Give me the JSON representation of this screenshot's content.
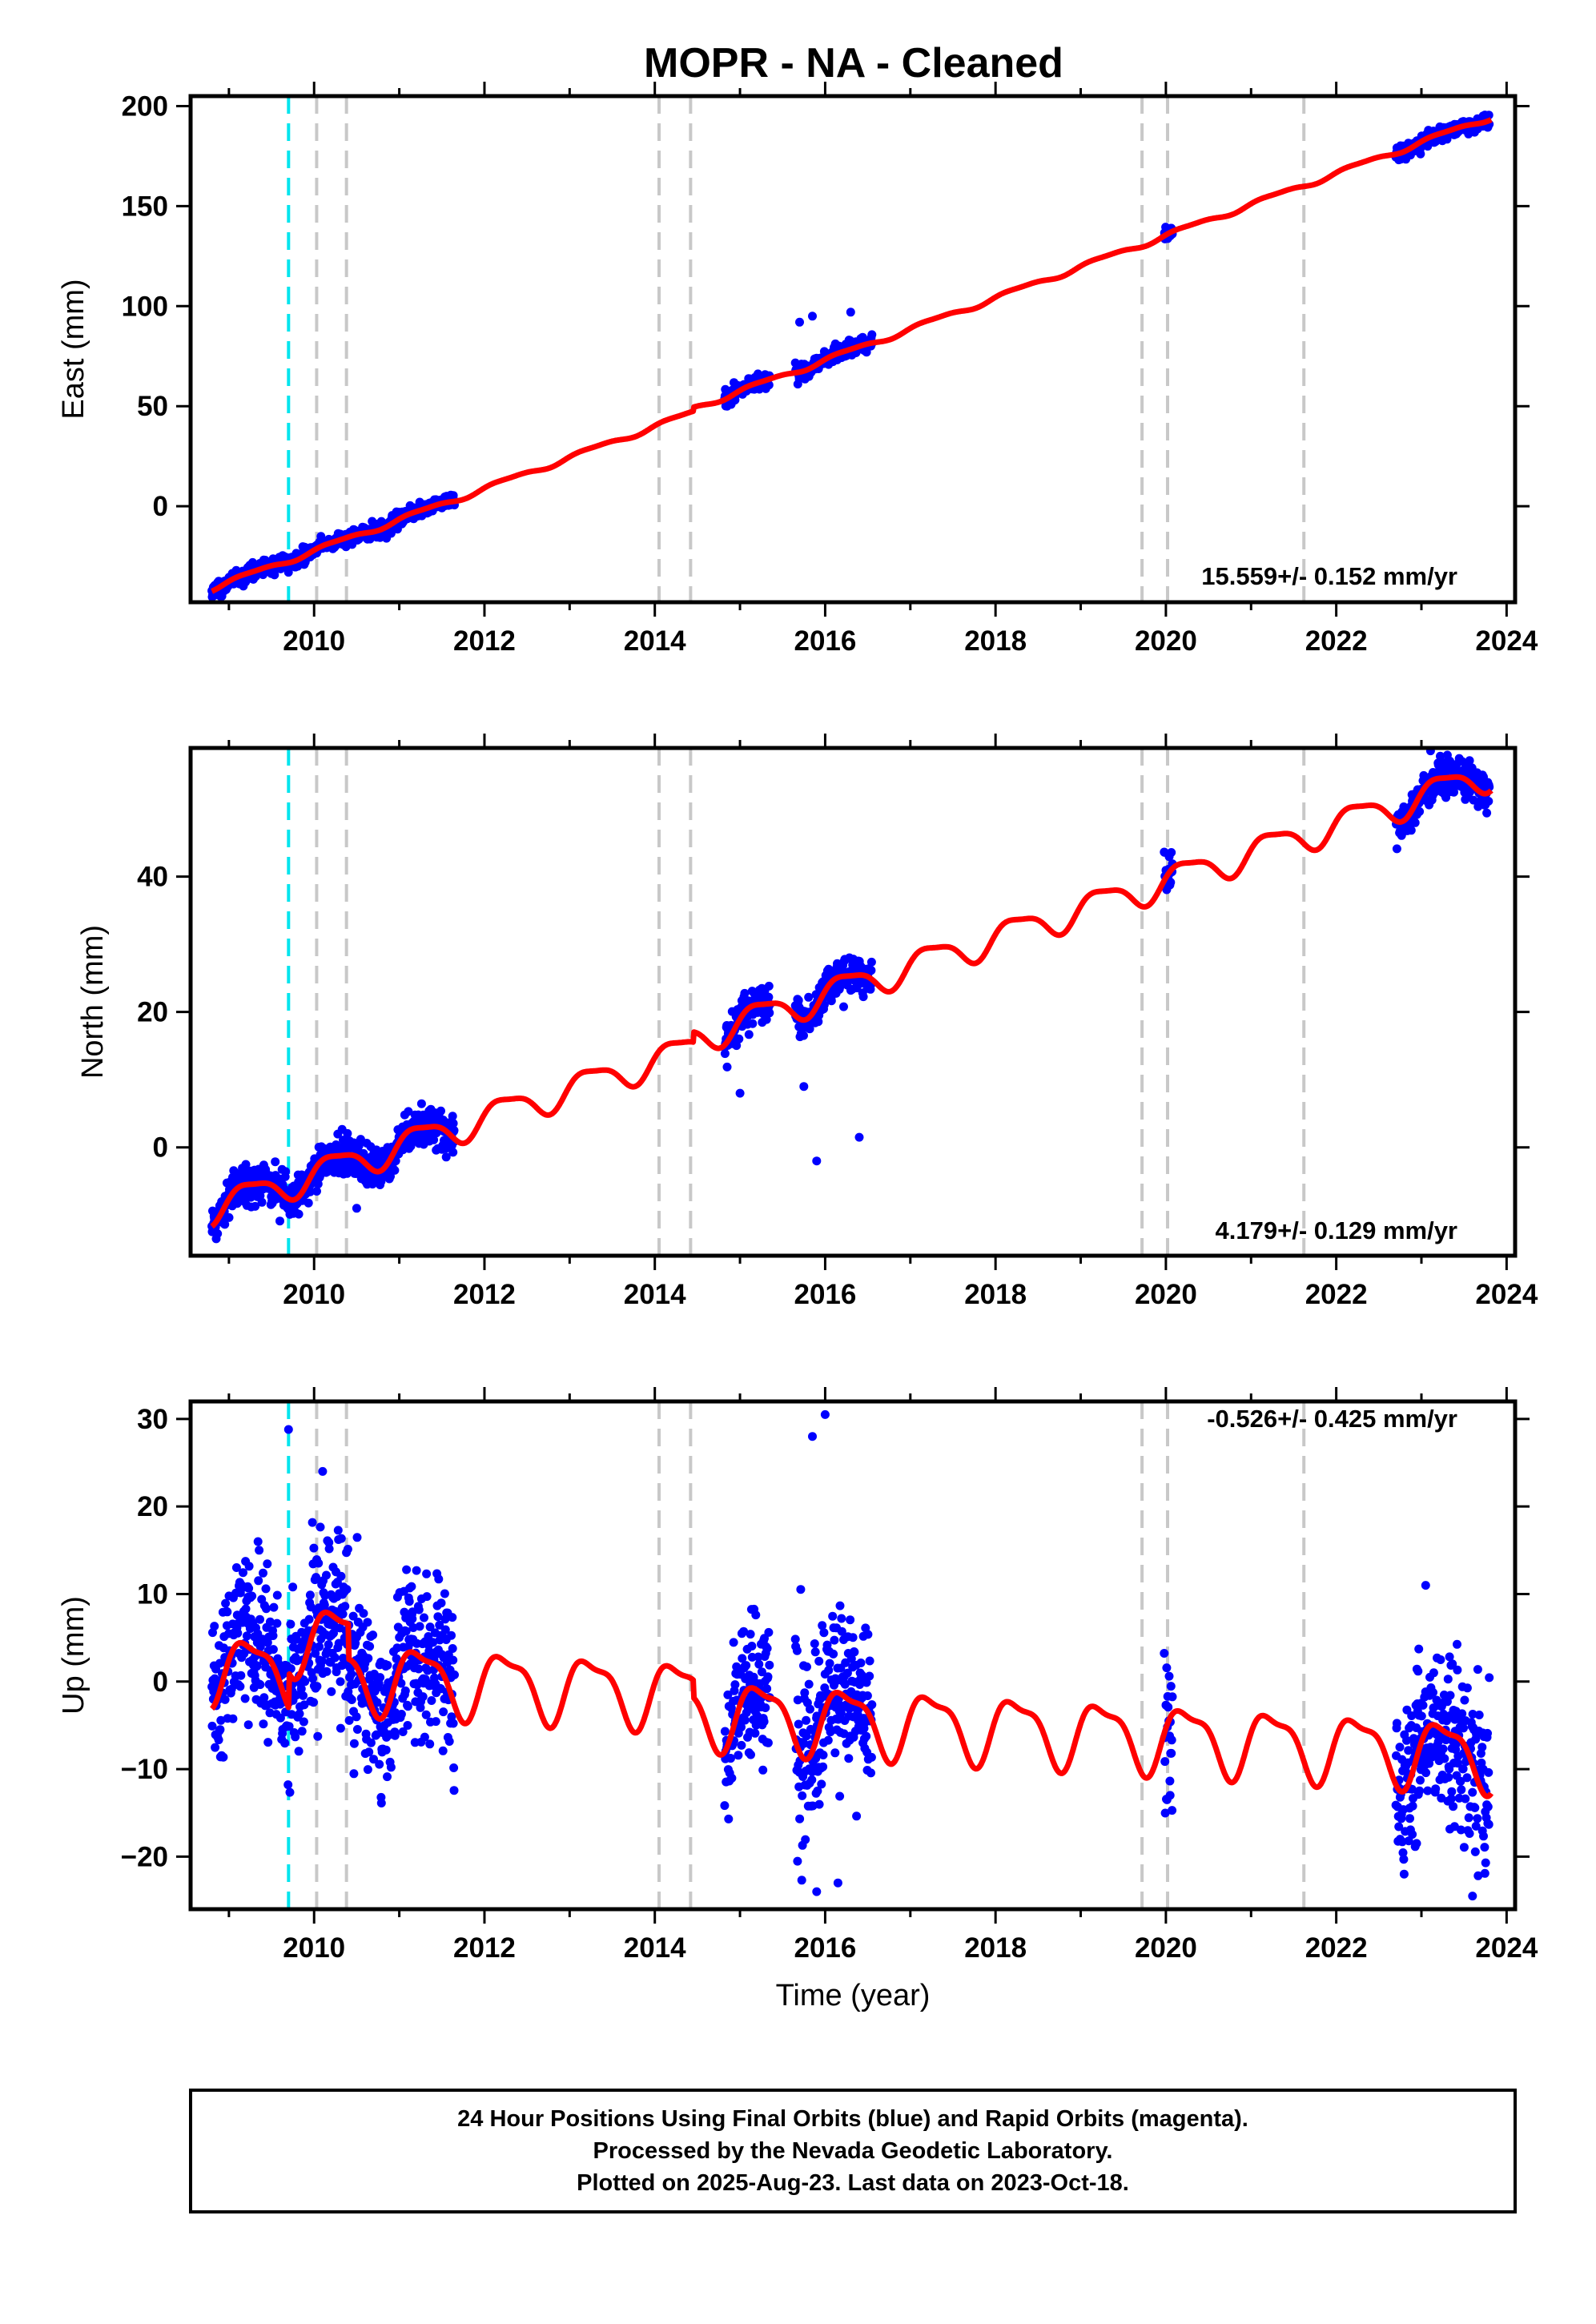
{
  "title": "MOPR  - NA - Cleaned",
  "note_lines": [
    "24 Hour Positions Using Final Orbits (blue) and Rapid Orbits (magenta).",
    "Processed by the Nevada Geodetic Laboratory.",
    "Plotted on 2025-Aug-23. Last data on 2023-Oct-18."
  ],
  "colors": {
    "points": "#0000ff",
    "fit": "#ff0000",
    "equipment_event": "#c8c8c8",
    "earthquake_event": "#00e5ee",
    "frame": "#000000"
  },
  "chart_data": [
    {
      "type": "scatter",
      "component": "east",
      "ylabel": "East (mm)",
      "xlabel": "",
      "xlim": [
        2008.55,
        2024.1
      ],
      "ylim": [
        -48,
        205
      ],
      "xticks": [
        2010,
        2012,
        2014,
        2016,
        2018,
        2020,
        2022,
        2024
      ],
      "yticks": [
        0,
        50,
        100,
        150,
        200
      ],
      "rate_text": "15.559+/- 0.152 mm/yr",
      "rate_mm_per_yr": 15.559,
      "rate_sigma": 0.152,
      "intercept_at_2008_8": -41,
      "annual_amplitude": 1.2,
      "semiannual_amplitude": 0.4,
      "noise_sigma": 1.8,
      "data_spans": [
        [
          2008.8,
          2011.65
        ],
        [
          2014.82,
          2015.35
        ],
        [
          2015.65,
          2016.55
        ],
        [
          2019.98,
          2020.08
        ],
        [
          2022.7,
          2023.8
        ]
      ],
      "outlier_points": [
        [
          2015.85,
          95
        ],
        [
          2016.3,
          97
        ],
        [
          2015.7,
          92
        ],
        [
          2010.85,
          -16
        ],
        [
          2008.9,
          -45
        ]
      ],
      "fit_offsets": [
        [
          2014.45,
          2
        ]
      ],
      "series": [
        {
          "name": "Final Orbits (blue)",
          "kind": "points"
        },
        {
          "name": "model fit",
          "kind": "line"
        }
      ]
    },
    {
      "type": "scatter",
      "component": "north",
      "ylabel": "North (mm)",
      "xlabel": "",
      "xlim": [
        2008.55,
        2024.1
      ],
      "ylim": [
        -16,
        59
      ],
      "xticks": [
        2010,
        2012,
        2014,
        2016,
        2018,
        2020,
        2022,
        2024
      ],
      "yticks": [
        0,
        20,
        40
      ],
      "rate_text": "4.179+/- 0.129 mm/yr",
      "rate_mm_per_yr": 4.179,
      "rate_sigma": 0.129,
      "intercept_at_2008_8": -9,
      "annual_amplitude": 2.2,
      "semiannual_amplitude": 0.6,
      "noise_sigma": 1.4,
      "data_spans": [
        [
          2008.8,
          2011.65
        ],
        [
          2014.82,
          2015.35
        ],
        [
          2015.65,
          2016.55
        ],
        [
          2019.98,
          2020.08
        ],
        [
          2022.7,
          2023.8
        ]
      ],
      "outlier_points": [
        [
          2015.9,
          -2
        ],
        [
          2016.4,
          1.5
        ],
        [
          2015.0,
          8
        ],
        [
          2015.75,
          9
        ],
        [
          2010.5,
          -9
        ]
      ],
      "fit_offsets": [
        [
          2014.45,
          1.5
        ]
      ],
      "series": [
        {
          "name": "Final Orbits (blue)",
          "kind": "points"
        },
        {
          "name": "model fit",
          "kind": "line"
        }
      ]
    },
    {
      "type": "scatter",
      "component": "up",
      "ylabel": "Up (mm)",
      "xlabel": "Time (year)",
      "xlim": [
        2008.55,
        2024.1
      ],
      "ylim": [
        -26,
        32
      ],
      "xticks": [
        2010,
        2012,
        2014,
        2016,
        2018,
        2020,
        2022,
        2024
      ],
      "yticks": [
        -20,
        -10,
        0,
        10,
        20,
        30
      ],
      "rate_text": "-0.526+/- 0.425 mm/yr",
      "rate_mm_per_yr": -0.526,
      "rate_sigma": 0.425,
      "intercept_at_2008_8": 1.5,
      "annual_amplitude": 3.6,
      "semiannual_amplitude": 1.2,
      "noise_sigma": 4.8,
      "data_spans": [
        [
          2008.8,
          2011.65
        ],
        [
          2014.82,
          2015.35
        ],
        [
          2015.65,
          2016.55
        ],
        [
          2019.98,
          2020.08
        ],
        [
          2022.7,
          2023.8
        ]
      ],
      "outlier_points": [
        [
          2009.7,
          28.8
        ],
        [
          2010.1,
          24
        ],
        [
          2016.0,
          30.5
        ],
        [
          2015.85,
          28
        ],
        [
          2015.9,
          -24
        ],
        [
          2016.15,
          -23
        ],
        [
          2023.6,
          -24.5
        ],
        [
          2022.75,
          -18
        ],
        [
          2023.05,
          11
        ],
        [
          2020.05,
          -13
        ]
      ],
      "fit_offsets": [
        [
          2009.7,
          4
        ],
        [
          2010.4,
          -4
        ],
        [
          2014.45,
          -2
        ]
      ],
      "series": [
        {
          "name": "Final Orbits (blue)",
          "kind": "points"
        },
        {
          "name": "model fit",
          "kind": "line"
        }
      ]
    }
  ],
  "event_lines": [
    {
      "year": 2009.7,
      "type": "earthquake"
    },
    {
      "year": 2010.03,
      "type": "equipment"
    },
    {
      "year": 2010.38,
      "type": "equipment"
    },
    {
      "year": 2014.05,
      "type": "equipment"
    },
    {
      "year": 2014.42,
      "type": "equipment"
    },
    {
      "year": 2019.72,
      "type": "equipment"
    },
    {
      "year": 2020.02,
      "type": "equipment"
    },
    {
      "year": 2021.62,
      "type": "equipment"
    }
  ]
}
